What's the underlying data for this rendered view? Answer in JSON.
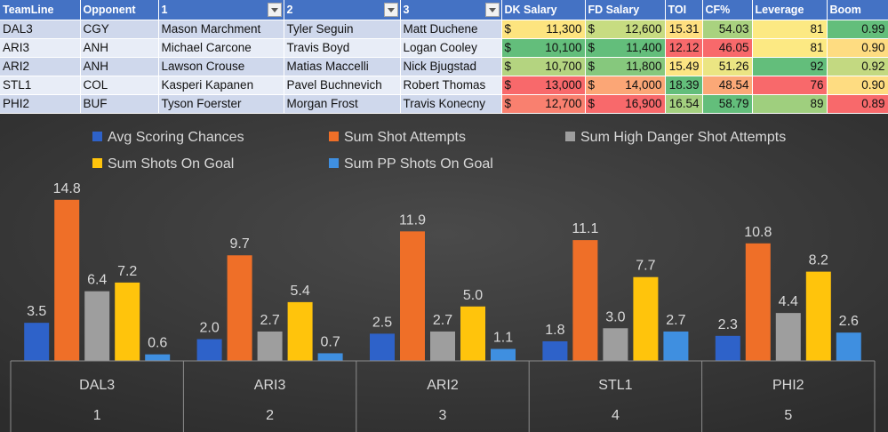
{
  "table": {
    "headers": [
      {
        "label": "TeamLine",
        "filter": false
      },
      {
        "label": "Opponent",
        "filter": false
      },
      {
        "label": "1",
        "filter": true
      },
      {
        "label": "2",
        "filter": true
      },
      {
        "label": "3",
        "filter": true
      },
      {
        "label": "DK Salary",
        "filter": false
      },
      {
        "label": "FD Salary",
        "filter": false
      },
      {
        "label": "TOI",
        "filter": false
      },
      {
        "label": "CF%",
        "filter": false
      },
      {
        "label": "Leverage",
        "filter": false
      },
      {
        "label": "Boom",
        "filter": false
      }
    ],
    "currency_symbol": "$",
    "rows": [
      {
        "teamline": "DAL3",
        "opponent": "CGY",
        "p1": "Mason Marchment",
        "p2": "Tyler Seguin",
        "p3": "Matt Duchene",
        "dk": "11,300",
        "dk_color": "#fde47f",
        "fd": "12,600",
        "fd_color": "#c7dc81",
        "toi": "15.31",
        "toi_color": "#fedf80",
        "cf": "54.03",
        "cf_color": "#a9d27f",
        "leverage": "81",
        "leverage_color": "#fce983",
        "boom": "0.99",
        "boom_color": "#63be7b"
      },
      {
        "teamline": "ARI3",
        "opponent": "ANH",
        "p1": "Michael Carcone",
        "p2": "Travis Boyd",
        "p3": "Logan Cooley",
        "dk": "10,100",
        "dk_color": "#63be7b",
        "fd": "11,400",
        "fd_color": "#63be7b",
        "toi": "12.12",
        "toi_color": "#f8696b",
        "cf": "46.05",
        "cf_color": "#f8696b",
        "leverage": "81",
        "leverage_color": "#fce983",
        "boom": "0.90",
        "boom_color": "#fedc81"
      },
      {
        "teamline": "ARI2",
        "opponent": "ANH",
        "p1": "Lawson Crouse",
        "p2": "Matias Maccelli",
        "p3": "Nick Bjugstad",
        "dk": "10,700",
        "dk_color": "#b4d480",
        "fd": "11,800",
        "fd_color": "#86c87d",
        "toi": "15.49",
        "toi_color": "#fde583",
        "cf": "51.26",
        "cf_color": "#ebe583",
        "leverage": "92",
        "leverage_color": "#63be7b",
        "boom": "0.92",
        "boom_color": "#c3d981"
      },
      {
        "teamline": "STL1",
        "opponent": "COL",
        "p1": "Kasperi Kapanen",
        "p2": "Pavel Buchnevich",
        "p3": "Robert Thomas",
        "dk": "13,000",
        "dk_color": "#f8696b",
        "fd": "14,000",
        "fd_color": "#fba676",
        "toi": "18.39",
        "toi_color": "#63be7b",
        "cf": "48.54",
        "cf_color": "#fba877",
        "leverage": "76",
        "leverage_color": "#f8696b",
        "boom": "0.90",
        "boom_color": "#fedc81"
      },
      {
        "teamline": "PHI2",
        "opponent": "BUF",
        "p1": "Tyson Foerster",
        "p2": "Morgan Frost",
        "p3": "Travis Konecny",
        "dk": "12,700",
        "dk_color": "#f9806f",
        "fd": "16,900",
        "fd_color": "#f8696b",
        "toi": "16.54",
        "toi_color": "#a4d07f",
        "cf": "58.79",
        "cf_color": "#63be7b",
        "leverage": "89",
        "leverage_color": "#9fcf7e",
        "boom": "0.89",
        "boom_color": "#f8696b"
      }
    ]
  },
  "chart_data": {
    "type": "bar",
    "categories": [
      "DAL3",
      "ARI3",
      "ARI2",
      "STL1",
      "PHI2"
    ],
    "sub_categories": [
      "1",
      "2",
      "3",
      "4",
      "5"
    ],
    "series": [
      {
        "name": "Avg Scoring Chances",
        "color": "#2e62c9",
        "values": [
          3.5,
          2.0,
          2.5,
          1.8,
          2.3
        ],
        "labels": [
          "3.5",
          "2.0",
          "2.5",
          "1.8",
          "2.3"
        ]
      },
      {
        "name": "Sum Shot Attempts",
        "color": "#ef6f28",
        "values": [
          14.8,
          9.7,
          11.9,
          11.1,
          10.8
        ],
        "labels": [
          "14.8",
          "9.7",
          "11.9",
          "11.1",
          "10.8"
        ]
      },
      {
        "name": "Sum High Danger Shot Attempts",
        "color": "#9e9e9e",
        "values": [
          6.4,
          2.7,
          2.7,
          3.0,
          4.4
        ],
        "labels": [
          "6.4",
          "2.7",
          "2.7",
          "3.0",
          "4.4"
        ]
      },
      {
        "name": "Sum Shots On Goal",
        "color": "#ffc40c",
        "values": [
          7.2,
          5.4,
          5.0,
          7.7,
          8.2
        ],
        "labels": [
          "7.2",
          "5.4",
          "5.0",
          "7.7",
          "8.2"
        ]
      },
      {
        "name": "Sum PP Shots On Goal",
        "color": "#3f8fe0",
        "values": [
          0.6,
          0.7,
          1.1,
          2.7,
          2.6
        ],
        "labels": [
          "0.6",
          "0.7",
          "1.1",
          "2.7",
          "2.6"
        ]
      }
    ],
    "ylim": [
      0,
      16.5
    ],
    "grid": false,
    "legend": "top",
    "background": "#3a3a3a",
    "label_color": "#d9d9d9"
  }
}
